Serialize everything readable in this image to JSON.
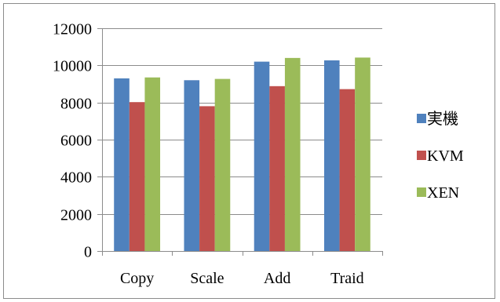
{
  "chart_data": {
    "type": "bar",
    "title": "",
    "xlabel": "",
    "ylabel": "",
    "categories": [
      "Copy",
      "Scale",
      "Add",
      "Traid"
    ],
    "series": [
      {
        "name": "実機",
        "values": [
          9300,
          9200,
          10200,
          10270
        ],
        "color": "#4f81bd"
      },
      {
        "name": "KVM",
        "values": [
          8020,
          7800,
          8880,
          8720
        ],
        "color": "#c0504d"
      },
      {
        "name": "XEN",
        "values": [
          9350,
          9270,
          10400,
          10420
        ],
        "color": "#9bbb59"
      }
    ],
    "ylim": [
      0,
      12000
    ],
    "yticks": [
      0,
      2000,
      4000,
      6000,
      8000,
      10000,
      12000
    ],
    "grid": true,
    "legend_position": "right"
  }
}
